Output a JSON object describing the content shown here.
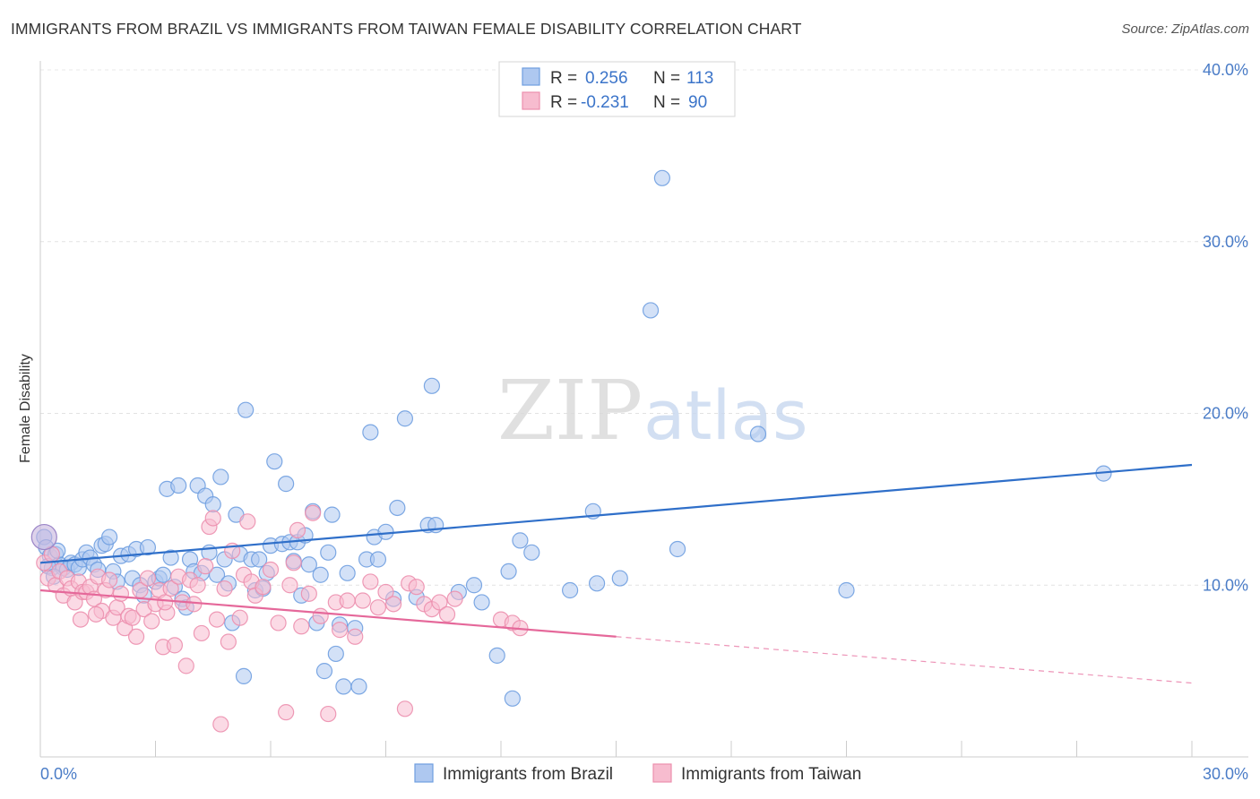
{
  "title": "IMMIGRANTS FROM BRAZIL VS IMMIGRANTS FROM TAIWAN FEMALE DISABILITY CORRELATION CHART",
  "source": "Source: ZipAtlas.com",
  "watermark": {
    "zip": "ZIP",
    "atlas": "atlas"
  },
  "legend": {
    "rows": [
      {
        "r_label": "R =",
        "r_value": "0.256",
        "n_label": "N =",
        "n_value": "113",
        "color": "#aec8f0",
        "stroke": "#6f9ee0"
      },
      {
        "r_label": "R =",
        "r_value": "-0.231",
        "n_label": "N =",
        "n_value": "90",
        "color": "#f7bccf",
        "stroke": "#ec8fae"
      }
    ]
  },
  "chart_data": {
    "type": "scatter",
    "title": "IMMIGRANTS FROM BRAZIL VS IMMIGRANTS FROM TAIWAN FEMALE DISABILITY CORRELATION CHART",
    "xlabel": "",
    "ylabel": "Female Disability",
    "xlim": [
      0,
      30
    ],
    "ylim": [
      0,
      40
    ],
    "x_ticks_labeled": [
      "0.0%",
      "30.0%"
    ],
    "y_ticks": [
      {
        "value": 10,
        "label": "10.0%"
      },
      {
        "value": 20,
        "label": "20.0%"
      },
      {
        "value": 30,
        "label": "30.0%"
      },
      {
        "value": 40,
        "label": "40.0%"
      }
    ],
    "grid": true,
    "legend_position": "bottom",
    "series": [
      {
        "name": "Immigrants from Brazil",
        "color": "#6f9ee0",
        "fill": "#aec8f0",
        "trend": {
          "x": [
            0,
            30
          ],
          "y": [
            11.3,
            17.0
          ],
          "color": "#2f6fc9"
        },
        "points": [
          [
            0.1,
            12.8
          ],
          [
            0.15,
            12.2
          ],
          [
            0.25,
            11.7
          ],
          [
            0.3,
            11.0
          ],
          [
            0.4,
            11.8
          ],
          [
            0.5,
            11.2
          ],
          [
            0.6,
            11.0
          ],
          [
            0.7,
            10.9
          ],
          [
            0.8,
            11.3
          ],
          [
            0.9,
            11.2
          ],
          [
            1.0,
            11.0
          ],
          [
            1.1,
            11.5
          ],
          [
            1.2,
            11.9
          ],
          [
            1.3,
            11.6
          ],
          [
            1.4,
            11.2
          ],
          [
            1.5,
            10.9
          ],
          [
            1.6,
            12.3
          ],
          [
            1.7,
            12.4
          ],
          [
            1.8,
            12.8
          ],
          [
            1.9,
            10.8
          ],
          [
            2.0,
            10.2
          ],
          [
            2.1,
            11.7
          ],
          [
            2.3,
            11.8
          ],
          [
            2.4,
            10.4
          ],
          [
            2.5,
            12.1
          ],
          [
            2.6,
            10.0
          ],
          [
            2.7,
            9.4
          ],
          [
            2.8,
            12.2
          ],
          [
            3.0,
            10.2
          ],
          [
            3.1,
            10.4
          ],
          [
            3.2,
            10.6
          ],
          [
            3.3,
            15.6
          ],
          [
            3.4,
            11.6
          ],
          [
            3.5,
            9.9
          ],
          [
            3.6,
            15.8
          ],
          [
            3.7,
            9.2
          ],
          [
            3.8,
            8.7
          ],
          [
            3.9,
            11.5
          ],
          [
            4.0,
            10.8
          ],
          [
            4.1,
            15.8
          ],
          [
            4.2,
            10.7
          ],
          [
            4.3,
            15.2
          ],
          [
            4.4,
            11.9
          ],
          [
            4.5,
            14.7
          ],
          [
            4.6,
            10.6
          ],
          [
            4.7,
            16.3
          ],
          [
            4.8,
            11.5
          ],
          [
            4.9,
            10.1
          ],
          [
            5.0,
            7.8
          ],
          [
            5.1,
            14.1
          ],
          [
            5.2,
            11.8
          ],
          [
            5.3,
            4.7
          ],
          [
            5.35,
            20.2
          ],
          [
            5.5,
            11.5
          ],
          [
            5.6,
            9.7
          ],
          [
            5.7,
            11.5
          ],
          [
            5.8,
            9.8
          ],
          [
            5.9,
            10.7
          ],
          [
            6.0,
            12.3
          ],
          [
            6.1,
            17.2
          ],
          [
            6.3,
            12.4
          ],
          [
            6.4,
            15.9
          ],
          [
            6.5,
            12.5
          ],
          [
            6.6,
            11.4
          ],
          [
            6.7,
            12.5
          ],
          [
            6.8,
            9.4
          ],
          [
            6.9,
            12.9
          ],
          [
            7.0,
            11.2
          ],
          [
            7.1,
            14.3
          ],
          [
            7.2,
            7.8
          ],
          [
            7.3,
            10.6
          ],
          [
            7.4,
            5.0
          ],
          [
            7.5,
            11.9
          ],
          [
            7.6,
            14.1
          ],
          [
            7.7,
            6.0
          ],
          [
            7.8,
            7.7
          ],
          [
            7.9,
            4.1
          ],
          [
            8.0,
            10.7
          ],
          [
            8.2,
            7.5
          ],
          [
            8.3,
            4.1
          ],
          [
            8.5,
            11.5
          ],
          [
            8.6,
            18.9
          ],
          [
            8.7,
            12.8
          ],
          [
            8.8,
            11.5
          ],
          [
            9.0,
            13.1
          ],
          [
            9.2,
            9.2
          ],
          [
            9.3,
            14.5
          ],
          [
            9.5,
            19.7
          ],
          [
            9.8,
            9.3
          ],
          [
            10.1,
            13.5
          ],
          [
            10.2,
            21.6
          ],
          [
            10.3,
            13.5
          ],
          [
            10.9,
            9.6
          ],
          [
            11.3,
            10.0
          ],
          [
            11.5,
            9.0
          ],
          [
            11.9,
            5.9
          ],
          [
            12.2,
            10.8
          ],
          [
            12.3,
            3.4
          ],
          [
            12.5,
            12.6
          ],
          [
            12.8,
            11.9
          ],
          [
            13.8,
            9.7
          ],
          [
            14.4,
            14.3
          ],
          [
            14.5,
            10.1
          ],
          [
            15.1,
            10.4
          ],
          [
            15.9,
            26.0
          ],
          [
            16.2,
            33.7
          ],
          [
            16.6,
            12.1
          ],
          [
            18.7,
            18.8
          ],
          [
            21.0,
            9.7
          ],
          [
            27.7,
            16.5
          ],
          [
            0.2,
            11.1
          ],
          [
            0.35,
            10.5
          ],
          [
            0.45,
            12.0
          ]
        ]
      },
      {
        "name": "Immigrants from Taiwan",
        "color": "#ec8fae",
        "fill": "#f7bccf",
        "trend": {
          "x": [
            0,
            15
          ],
          "y": [
            9.7,
            7.0
          ],
          "color": "#e5689a"
        },
        "trend_dashed": {
          "x": [
            15,
            30
          ],
          "y": [
            7.0,
            4.3
          ]
        },
        "points": [
          [
            0.1,
            11.3
          ],
          [
            0.2,
            10.4
          ],
          [
            0.3,
            11.8
          ],
          [
            0.4,
            10.0
          ],
          [
            0.5,
            10.8
          ],
          [
            0.6,
            9.4
          ],
          [
            0.7,
            10.4
          ],
          [
            0.8,
            9.8
          ],
          [
            0.9,
            9.0
          ],
          [
            1.0,
            10.2
          ],
          [
            1.05,
            8.0
          ],
          [
            1.1,
            9.6
          ],
          [
            1.2,
            9.6
          ],
          [
            1.3,
            9.9
          ],
          [
            1.4,
            9.2
          ],
          [
            1.5,
            10.5
          ],
          [
            1.6,
            8.5
          ],
          [
            1.7,
            9.7
          ],
          [
            1.8,
            10.3
          ],
          [
            1.9,
            8.1
          ],
          [
            2.0,
            8.7
          ],
          [
            2.1,
            9.5
          ],
          [
            2.2,
            7.5
          ],
          [
            2.3,
            8.2
          ],
          [
            2.4,
            8.1
          ],
          [
            2.5,
            7.0
          ],
          [
            2.6,
            9.7
          ],
          [
            2.7,
            8.6
          ],
          [
            2.8,
            10.4
          ],
          [
            2.9,
            7.9
          ],
          [
            3.0,
            8.9
          ],
          [
            3.1,
            9.7
          ],
          [
            3.2,
            6.4
          ],
          [
            3.3,
            8.4
          ],
          [
            3.4,
            9.8
          ],
          [
            3.5,
            6.5
          ],
          [
            3.6,
            10.5
          ],
          [
            3.7,
            9.0
          ],
          [
            3.8,
            5.3
          ],
          [
            3.9,
            10.3
          ],
          [
            4.0,
            8.9
          ],
          [
            4.1,
            10.0
          ],
          [
            4.2,
            7.2
          ],
          [
            4.3,
            11.1
          ],
          [
            4.4,
            13.4
          ],
          [
            4.5,
            13.9
          ],
          [
            4.6,
            8.0
          ],
          [
            4.7,
            1.9
          ],
          [
            4.8,
            9.8
          ],
          [
            4.9,
            6.7
          ],
          [
            5.0,
            12.0
          ],
          [
            5.2,
            8.1
          ],
          [
            5.3,
            10.6
          ],
          [
            5.4,
            13.7
          ],
          [
            5.5,
            10.2
          ],
          [
            5.6,
            9.4
          ],
          [
            5.8,
            9.9
          ],
          [
            6.0,
            10.9
          ],
          [
            6.2,
            7.8
          ],
          [
            6.4,
            2.6
          ],
          [
            6.5,
            10.0
          ],
          [
            6.6,
            11.3
          ],
          [
            6.7,
            13.2
          ],
          [
            6.8,
            7.6
          ],
          [
            7.0,
            9.5
          ],
          [
            7.1,
            14.2
          ],
          [
            7.3,
            8.2
          ],
          [
            7.5,
            2.5
          ],
          [
            7.7,
            9.0
          ],
          [
            7.8,
            7.4
          ],
          [
            8.0,
            9.1
          ],
          [
            8.2,
            7.0
          ],
          [
            8.4,
            9.1
          ],
          [
            8.6,
            10.2
          ],
          [
            8.8,
            8.7
          ],
          [
            9.0,
            9.6
          ],
          [
            9.2,
            8.9
          ],
          [
            9.5,
            2.8
          ],
          [
            9.6,
            10.1
          ],
          [
            9.8,
            9.9
          ],
          [
            10.0,
            8.9
          ],
          [
            10.2,
            8.6
          ],
          [
            10.4,
            9.0
          ],
          [
            10.6,
            8.3
          ],
          [
            10.8,
            9.2
          ],
          [
            12.0,
            8.0
          ],
          [
            12.3,
            7.8
          ],
          [
            12.5,
            7.5
          ],
          [
            3.25,
            9.0
          ],
          [
            1.45,
            8.3
          ]
        ]
      }
    ]
  },
  "bottom_legend": {
    "items": [
      {
        "label": "Immigrants from Brazil",
        "color": "#aec8f0",
        "stroke": "#6f9ee0"
      },
      {
        "label": "Immigrants from Taiwan",
        "color": "#f7bccf",
        "stroke": "#ec8fae"
      }
    ]
  }
}
